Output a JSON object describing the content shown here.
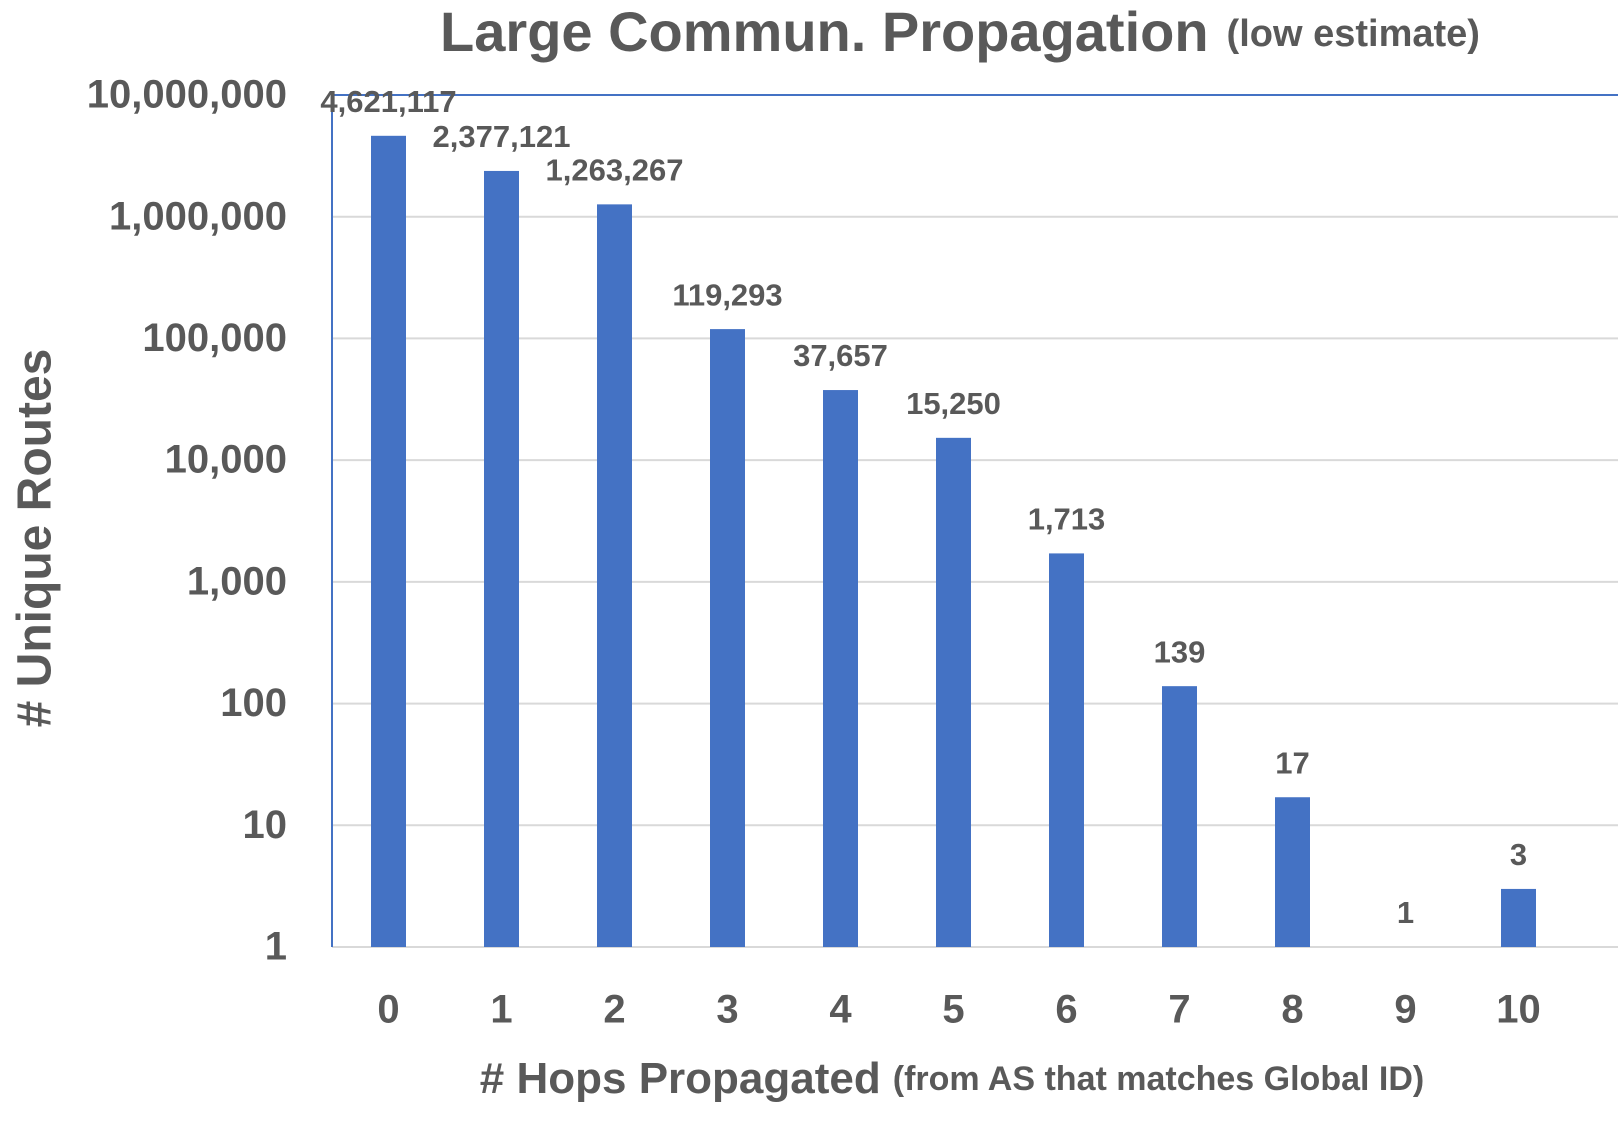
{
  "chart_data": {
    "type": "bar",
    "title": "Large Commun. Propagation",
    "subtitle": "(low estimate)",
    "x_label": "# Hops Propagated",
    "x_label_note": "(from AS that matches Global ID)",
    "y_label": "# Unique  Routes",
    "categories": [
      "0",
      "1",
      "2",
      "3",
      "4",
      "5",
      "6",
      "7",
      "8",
      "9",
      "10"
    ],
    "values": [
      4621117,
      2377121,
      1263267,
      119293,
      37657,
      15250,
      1713,
      139,
      17,
      1,
      3
    ],
    "value_labels": [
      "4,621,117",
      "2,377,121",
      "1,263,267",
      "119,293",
      "37,657",
      "15,250",
      "1,713",
      "139",
      "17",
      "1",
      "3"
    ],
    "color": "#4472c4",
    "log_scale": true,
    "grid": true,
    "ylim": [
      1,
      10000000
    ],
    "yticks": [
      1,
      10,
      100,
      {
        "value": 1000,
        "label": "1,000"
      },
      {
        "value": 10000,
        "label": "10,000"
      },
      {
        "value": 100000,
        "label": "100,000"
      },
      {
        "value": 1000000,
        "label": "1,000,000"
      },
      {
        "value": 10000000,
        "label": "10,000,000"
      }
    ]
  }
}
